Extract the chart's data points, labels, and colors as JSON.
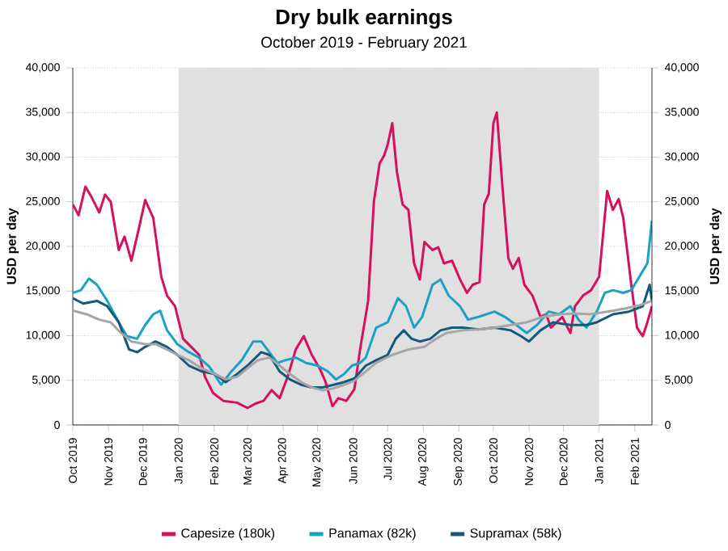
{
  "chart_data": {
    "type": "line",
    "title": "Dry bulk earnings",
    "subtitle": "October 2019 - February 2021",
    "ylabel": "USD per day",
    "y2label": "USD per day",
    "xlim": [
      "2019-10-01",
      "2021-02-16"
    ],
    "xticks": [
      {
        "value": "2019-10-01",
        "label": "Oct 2019"
      },
      {
        "value": "2019-11-01",
        "label": "Nov 2019"
      },
      {
        "value": "2019-12-01",
        "label": "Dec 2019"
      },
      {
        "value": "2020-01-01",
        "label": "Jan 2020"
      },
      {
        "value": "2020-02-01",
        "label": "Feb 2020"
      },
      {
        "value": "2020-03-01",
        "label": "Mar 2020"
      },
      {
        "value": "2020-04-01",
        "label": "Apr 2020"
      },
      {
        "value": "2020-05-01",
        "label": "May 2020"
      },
      {
        "value": "2020-06-01",
        "label": "Jun 2020"
      },
      {
        "value": "2020-07-01",
        "label": "Jul 2020"
      },
      {
        "value": "2020-08-01",
        "label": "Aug 2020"
      },
      {
        "value": "2020-09-01",
        "label": "Sep 2020"
      },
      {
        "value": "2020-10-01",
        "label": "Oct 2020"
      },
      {
        "value": "2020-11-01",
        "label": "Nov 2020"
      },
      {
        "value": "2020-12-01",
        "label": "Dec 2020"
      },
      {
        "value": "2021-01-01",
        "label": "Jan 2021"
      },
      {
        "value": "2021-02-01",
        "label": "Feb 2021"
      }
    ],
    "ylim": [
      0,
      40000
    ],
    "yticks": [
      0,
      {
        "value": 5000,
        "label": "5,000"
      },
      {
        "value": 10000,
        "label": "10,000"
      },
      {
        "value": 15000,
        "label": "15,000"
      },
      {
        "value": 20000,
        "label": "20,000"
      },
      {
        "value": 25000,
        "label": "25,000"
      },
      {
        "value": 30000,
        "label": "30,000"
      },
      {
        "value": 35000,
        "label": "35,000"
      },
      {
        "value": 40000,
        "label": "40,000"
      }
    ],
    "y2lim": [
      0,
      40000
    ],
    "y2ticks": [
      0,
      {
        "value": 5000,
        "label": "5,000"
      },
      {
        "value": 10000,
        "label": "10,000"
      },
      {
        "value": 15000,
        "label": "15,000"
      },
      {
        "value": 20000,
        "label": "20,000"
      },
      {
        "value": 25000,
        "label": "25,000"
      },
      {
        "value": 30000,
        "label": "30,000"
      },
      {
        "value": 35000,
        "label": "35,000"
      },
      {
        "value": 40000,
        "label": "40,000"
      }
    ],
    "grid": "y",
    "legend": "bottom",
    "line_style": "solid",
    "bands": [
      {
        "axis": "x",
        "from": "2020-01-01",
        "to": "2021-01-01",
        "color": "#e0e0e0"
      }
    ],
    "series": [
      {
        "name": "Capesize (180k)",
        "color": "#d6105f",
        "x": [
          "2019-10-01",
          "2019-10-06",
          "2019-10-12",
          "2019-10-17",
          "2019-10-24",
          "2019-10-29",
          "2019-11-03",
          "2019-11-10",
          "2019-11-15",
          "2019-11-21",
          "2019-11-28",
          "2019-12-03",
          "2019-12-10",
          "2019-12-17",
          "2019-12-22",
          "2019-12-29",
          "2020-01-05",
          "2020-01-12",
          "2020-01-19",
          "2020-01-24",
          "2020-01-31",
          "2020-02-09",
          "2020-02-21",
          "2020-03-01",
          "2020-03-08",
          "2020-03-15",
          "2020-03-22",
          "2020-03-29",
          "2020-04-05",
          "2020-04-12",
          "2020-04-19",
          "2020-04-26",
          "2020-05-03",
          "2020-05-08",
          "2020-05-14",
          "2020-05-19",
          "2020-05-26",
          "2020-06-02",
          "2020-06-07",
          "2020-06-14",
          "2020-06-19",
          "2020-06-24",
          "2020-06-28",
          "2020-07-01",
          "2020-07-05",
          "2020-07-09",
          "2020-07-14",
          "2020-07-19",
          "2020-07-24",
          "2020-07-29",
          "2020-08-02",
          "2020-08-09",
          "2020-08-14",
          "2020-08-19",
          "2020-08-26",
          "2020-09-02",
          "2020-09-08",
          "2020-09-13",
          "2020-09-19",
          "2020-09-23",
          "2020-09-27",
          "2020-10-01",
          "2020-10-04",
          "2020-10-09",
          "2020-10-14",
          "2020-10-18",
          "2020-10-23",
          "2020-10-28",
          "2020-11-04",
          "2020-11-11",
          "2020-11-16",
          "2020-11-20",
          "2020-11-25",
          "2020-11-30",
          "2020-12-07",
          "2020-12-11",
          "2020-12-18",
          "2020-12-25",
          "2021-01-01",
          "2021-01-08",
          "2021-01-13",
          "2021-01-18",
          "2021-01-22",
          "2021-01-29",
          "2021-02-03",
          "2021-02-08",
          "2021-02-12",
          "2021-02-16"
        ],
        "values": [
          24700,
          23500,
          26700,
          25600,
          23800,
          25800,
          25000,
          19600,
          21100,
          18400,
          22300,
          25200,
          23200,
          16600,
          14500,
          13300,
          9650,
          8750,
          7850,
          5400,
          3600,
          2700,
          2500,
          1900,
          2400,
          2700,
          3900,
          3000,
          5400,
          8450,
          9950,
          7850,
          6300,
          4800,
          2100,
          3000,
          2700,
          4000,
          8450,
          13900,
          25000,
          29300,
          30200,
          31400,
          33800,
          28400,
          24700,
          24100,
          18100,
          16300,
          20500,
          19600,
          19900,
          18100,
          18400,
          16300,
          14800,
          15700,
          16000,
          24700,
          25900,
          33800,
          35000,
          26500,
          18700,
          17500,
          18700,
          15700,
          14500,
          12100,
          12400,
          10900,
          11500,
          12100,
          10300,
          13300,
          14500,
          15100,
          16600,
          26200,
          24100,
          25300,
          23200,
          15700,
          10900,
          9950,
          11500,
          13300
        ]
      },
      {
        "name": "Panamax (82k)",
        "color": "#1ba1c8",
        "x": [
          "2019-10-01",
          "2019-10-08",
          "2019-10-15",
          "2019-10-22",
          "2019-10-31",
          "2019-11-10",
          "2019-11-17",
          "2019-11-26",
          "2019-12-03",
          "2019-12-10",
          "2019-12-16",
          "2019-12-22",
          "2019-12-31",
          "2020-01-10",
          "2020-01-19",
          "2020-01-28",
          "2020-02-07",
          "2020-02-16",
          "2020-02-25",
          "2020-03-06",
          "2020-03-13",
          "2020-03-20",
          "2020-03-27",
          "2020-04-03",
          "2020-04-12",
          "2020-04-21",
          "2020-05-01",
          "2020-05-10",
          "2020-05-17",
          "2020-05-24",
          "2020-05-31",
          "2020-06-07",
          "2020-06-12",
          "2020-06-21",
          "2020-07-01",
          "2020-07-10",
          "2020-07-17",
          "2020-07-24",
          "2020-07-31",
          "2020-08-09",
          "2020-08-16",
          "2020-08-23",
          "2020-09-02",
          "2020-09-09",
          "2020-09-18",
          "2020-10-02",
          "2020-10-11",
          "2020-10-21",
          "2020-10-30",
          "2020-11-08",
          "2020-11-18",
          "2020-11-27",
          "2020-12-07",
          "2020-12-14",
          "2020-12-21",
          "2020-12-30",
          "2021-01-06",
          "2021-01-13",
          "2021-01-22",
          "2021-01-29",
          "2021-02-05",
          "2021-02-12",
          "2021-02-16"
        ],
        "values": [
          14800,
          15100,
          16400,
          15700,
          13900,
          11500,
          9950,
          9650,
          11200,
          12400,
          12800,
          10600,
          9050,
          8150,
          7550,
          6500,
          4500,
          6000,
          7250,
          9350,
          9350,
          8150,
          6950,
          7250,
          7550,
          6950,
          6650,
          6000,
          5100,
          5700,
          6650,
          6950,
          7550,
          10900,
          11500,
          14200,
          13300,
          10900,
          12100,
          15700,
          16300,
          14500,
          13300,
          11800,
          12100,
          12700,
          12100,
          11200,
          10300,
          11200,
          12700,
          12400,
          13300,
          11800,
          10900,
          12700,
          14800,
          15100,
          14800,
          15100,
          16600,
          18100,
          22900
        ]
      },
      {
        "name": "Supramax (58k)",
        "color": "#15597a",
        "x": [
          "2019-10-01",
          "2019-10-10",
          "2019-10-22",
          "2019-10-31",
          "2019-11-10",
          "2019-11-19",
          "2019-11-26",
          "2019-12-03",
          "2019-12-12",
          "2019-12-22",
          "2019-12-31",
          "2020-01-10",
          "2020-01-21",
          "2020-02-02",
          "2020-02-11",
          "2020-02-21",
          "2020-03-01",
          "2020-03-13",
          "2020-03-20",
          "2020-03-29",
          "2020-04-07",
          "2020-04-17",
          "2020-04-26",
          "2020-05-05",
          "2020-05-15",
          "2020-05-24",
          "2020-06-02",
          "2020-06-12",
          "2020-06-21",
          "2020-07-01",
          "2020-07-08",
          "2020-07-15",
          "2020-07-22",
          "2020-07-29",
          "2020-08-07",
          "2020-08-16",
          "2020-08-26",
          "2020-09-04",
          "2020-09-18",
          "2020-10-02",
          "2020-10-16",
          "2020-10-25",
          "2020-11-01",
          "2020-11-11",
          "2020-11-22",
          "2020-12-07",
          "2020-12-21",
          "2020-12-30",
          "2021-01-13",
          "2021-01-27",
          "2021-02-08",
          "2021-02-14",
          "2021-02-16"
        ],
        "values": [
          14200,
          13600,
          13900,
          13300,
          11500,
          8450,
          8150,
          8750,
          9350,
          8750,
          7850,
          6650,
          6000,
          5700,
          4800,
          5700,
          6650,
          8150,
          7850,
          6000,
          5100,
          4500,
          4200,
          4200,
          4500,
          4800,
          5200,
          6650,
          7250,
          7850,
          9650,
          10600,
          9650,
          9350,
          9650,
          10600,
          10900,
          10900,
          10700,
          10900,
          10600,
          9950,
          9350,
          10600,
          11500,
          11200,
          11200,
          11500,
          12400,
          12700,
          13300,
          15700,
          13900
        ]
      },
      {
        "color": "#a6a6a6",
        "x": [
          "2019-10-01",
          "2019-10-13",
          "2019-10-24",
          "2019-11-03",
          "2019-11-12",
          "2019-11-21",
          "2019-12-03",
          "2019-12-12",
          "2019-12-22",
          "2019-12-31",
          "2020-01-10",
          "2020-01-21",
          "2020-02-02",
          "2020-02-11",
          "2020-02-21",
          "2020-03-01",
          "2020-03-10",
          "2020-03-20",
          "2020-03-29",
          "2020-04-07",
          "2020-04-17",
          "2020-04-26",
          "2020-05-05",
          "2020-05-15",
          "2020-05-24",
          "2020-06-02",
          "2020-06-12",
          "2020-06-21",
          "2020-07-05",
          "2020-07-19",
          "2020-08-02",
          "2020-08-12",
          "2020-08-21",
          "2020-09-04",
          "2020-09-18",
          "2020-10-02",
          "2020-10-16",
          "2020-10-30",
          "2020-11-13",
          "2020-11-27",
          "2020-12-11",
          "2020-12-25",
          "2021-01-08",
          "2021-01-22",
          "2021-02-05",
          "2021-02-16"
        ],
        "values": [
          12800,
          12400,
          11800,
          11500,
          10300,
          9350,
          9050,
          9050,
          8450,
          7850,
          7250,
          6350,
          5700,
          5100,
          5400,
          6350,
          7250,
          7550,
          6650,
          5700,
          4800,
          4200,
          3900,
          4100,
          4500,
          4950,
          6000,
          6950,
          7850,
          8450,
          8750,
          9650,
          10300,
          10600,
          10700,
          10900,
          11200,
          11500,
          12100,
          12400,
          12500,
          12400,
          12700,
          13000,
          13400,
          13900
        ]
      }
    ]
  }
}
